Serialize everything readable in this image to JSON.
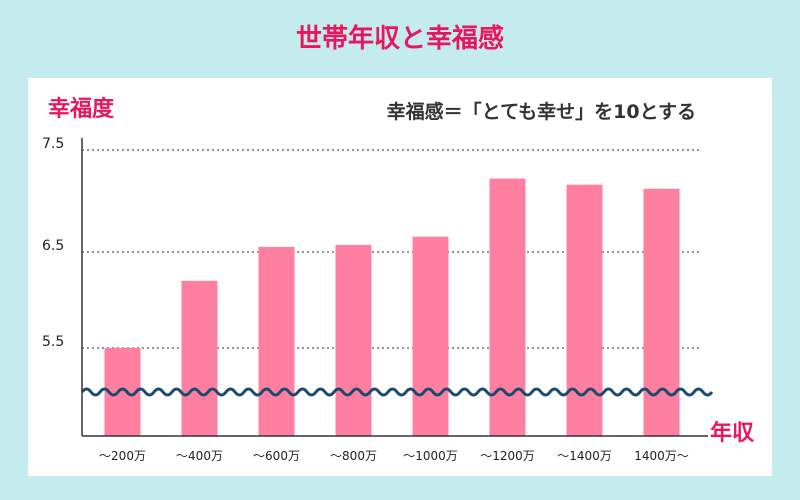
{
  "title": "世帯年収と幸福感",
  "chart_data": {
    "type": "bar",
    "ylabel": "幸福度",
    "xlabel": "年収",
    "annotation": "幸福感＝「とても幸せ」を10とする",
    "categories": [
      "～200万",
      "～400万",
      "～600万",
      "～800万",
      "～1000万",
      "～1200万",
      "～1400万",
      "1400万～"
    ],
    "values": [
      5.5,
      6.2,
      6.55,
      6.57,
      6.65,
      7.22,
      7.16,
      7.12
    ],
    "yticks": [
      "7.5",
      "6.5",
      "5.5"
    ],
    "ytick_values": [
      7.5,
      6.5,
      5.5
    ],
    "axis_break": true,
    "grid": "dotted",
    "colors": {
      "bar": "#ff7fa0",
      "accent": "#e8175d",
      "break_line": "#1c4a6e",
      "background": "#c4ecef"
    }
  }
}
